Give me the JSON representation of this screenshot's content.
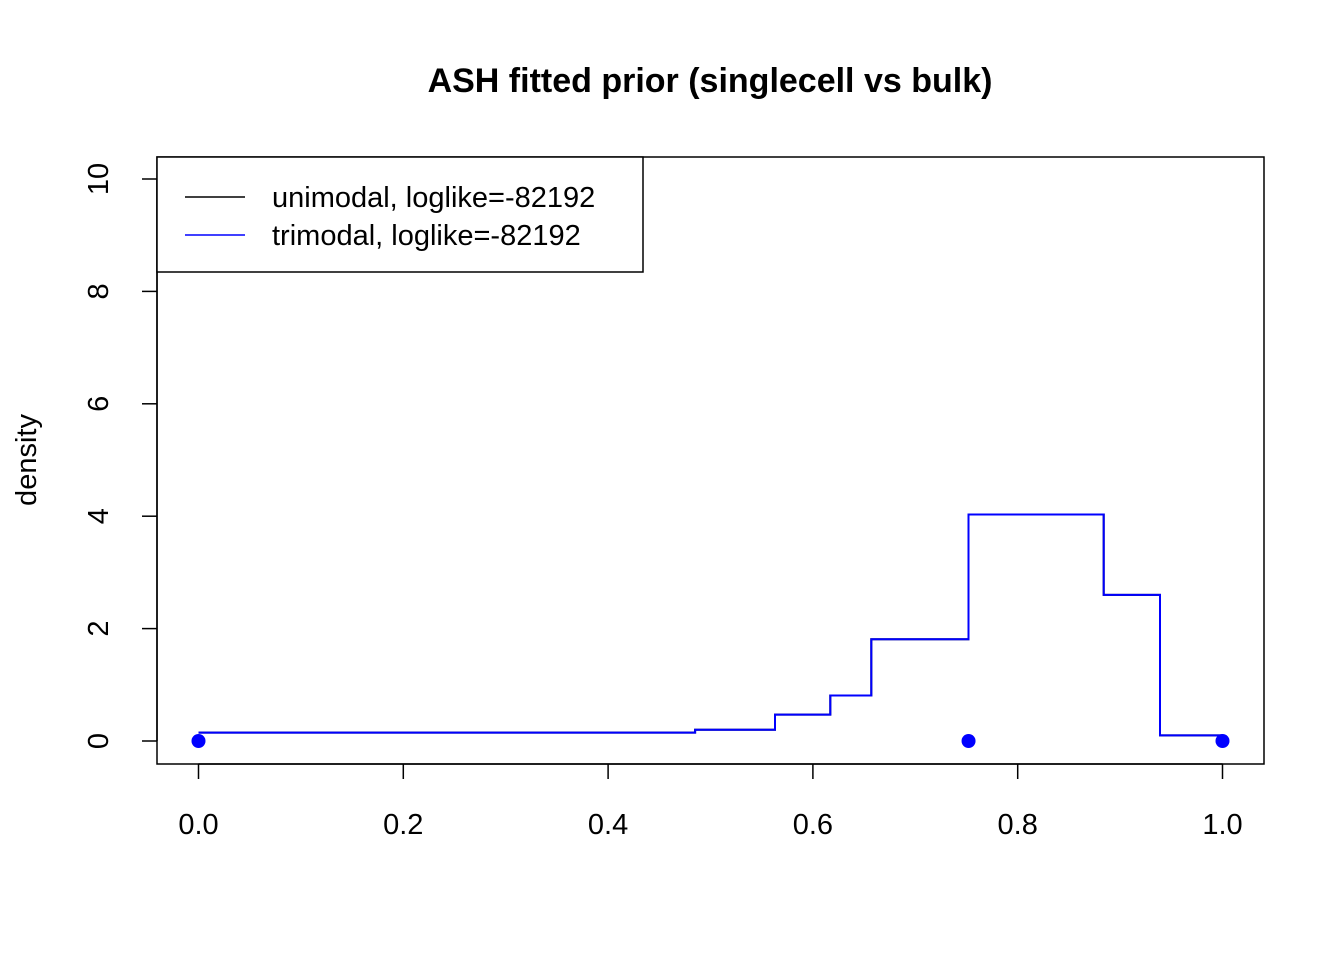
{
  "chart_data": {
    "type": "line",
    "title": "ASH fitted prior (singlecell vs bulk)",
    "xlabel": "",
    "ylabel": "density",
    "xlim": [
      0.0,
      1.0
    ],
    "ylim": [
      0,
      10
    ],
    "x_ticks": [
      "0.0",
      "0.2",
      "0.4",
      "0.6",
      "0.8",
      "1.0"
    ],
    "y_ticks": [
      "0",
      "2",
      "4",
      "6",
      "8",
      "10"
    ],
    "legend": {
      "position": "top-left",
      "entries": [
        {
          "label": "unimodal, loglike=-82192",
          "color": "#000000"
        },
        {
          "label": "trimodal, loglike=-82192",
          "color": "#0000ff"
        }
      ]
    },
    "series": [
      {
        "name": "unimodal, loglike=-82192",
        "color": "#000000",
        "step_x": [
          0.0,
          0.485,
          0.563,
          0.617,
          0.657,
          0.752,
          0.884,
          0.939,
          1.0
        ],
        "step_y": [
          0.15,
          0.2,
          0.47,
          0.81,
          1.81,
          4.03,
          2.6,
          0.1
        ]
      },
      {
        "name": "trimodal, loglike=-82192",
        "color": "#0000ff",
        "step_x": [
          0.0,
          0.485,
          0.563,
          0.617,
          0.657,
          0.752,
          0.884,
          0.939,
          1.0
        ],
        "step_y": [
          0.15,
          0.2,
          0.47,
          0.81,
          1.81,
          4.03,
          2.6,
          0.1
        ]
      }
    ],
    "points": {
      "color": "#0000ff",
      "x": [
        0.0,
        0.752,
        1.0
      ],
      "y": [
        0,
        0,
        0
      ]
    }
  }
}
